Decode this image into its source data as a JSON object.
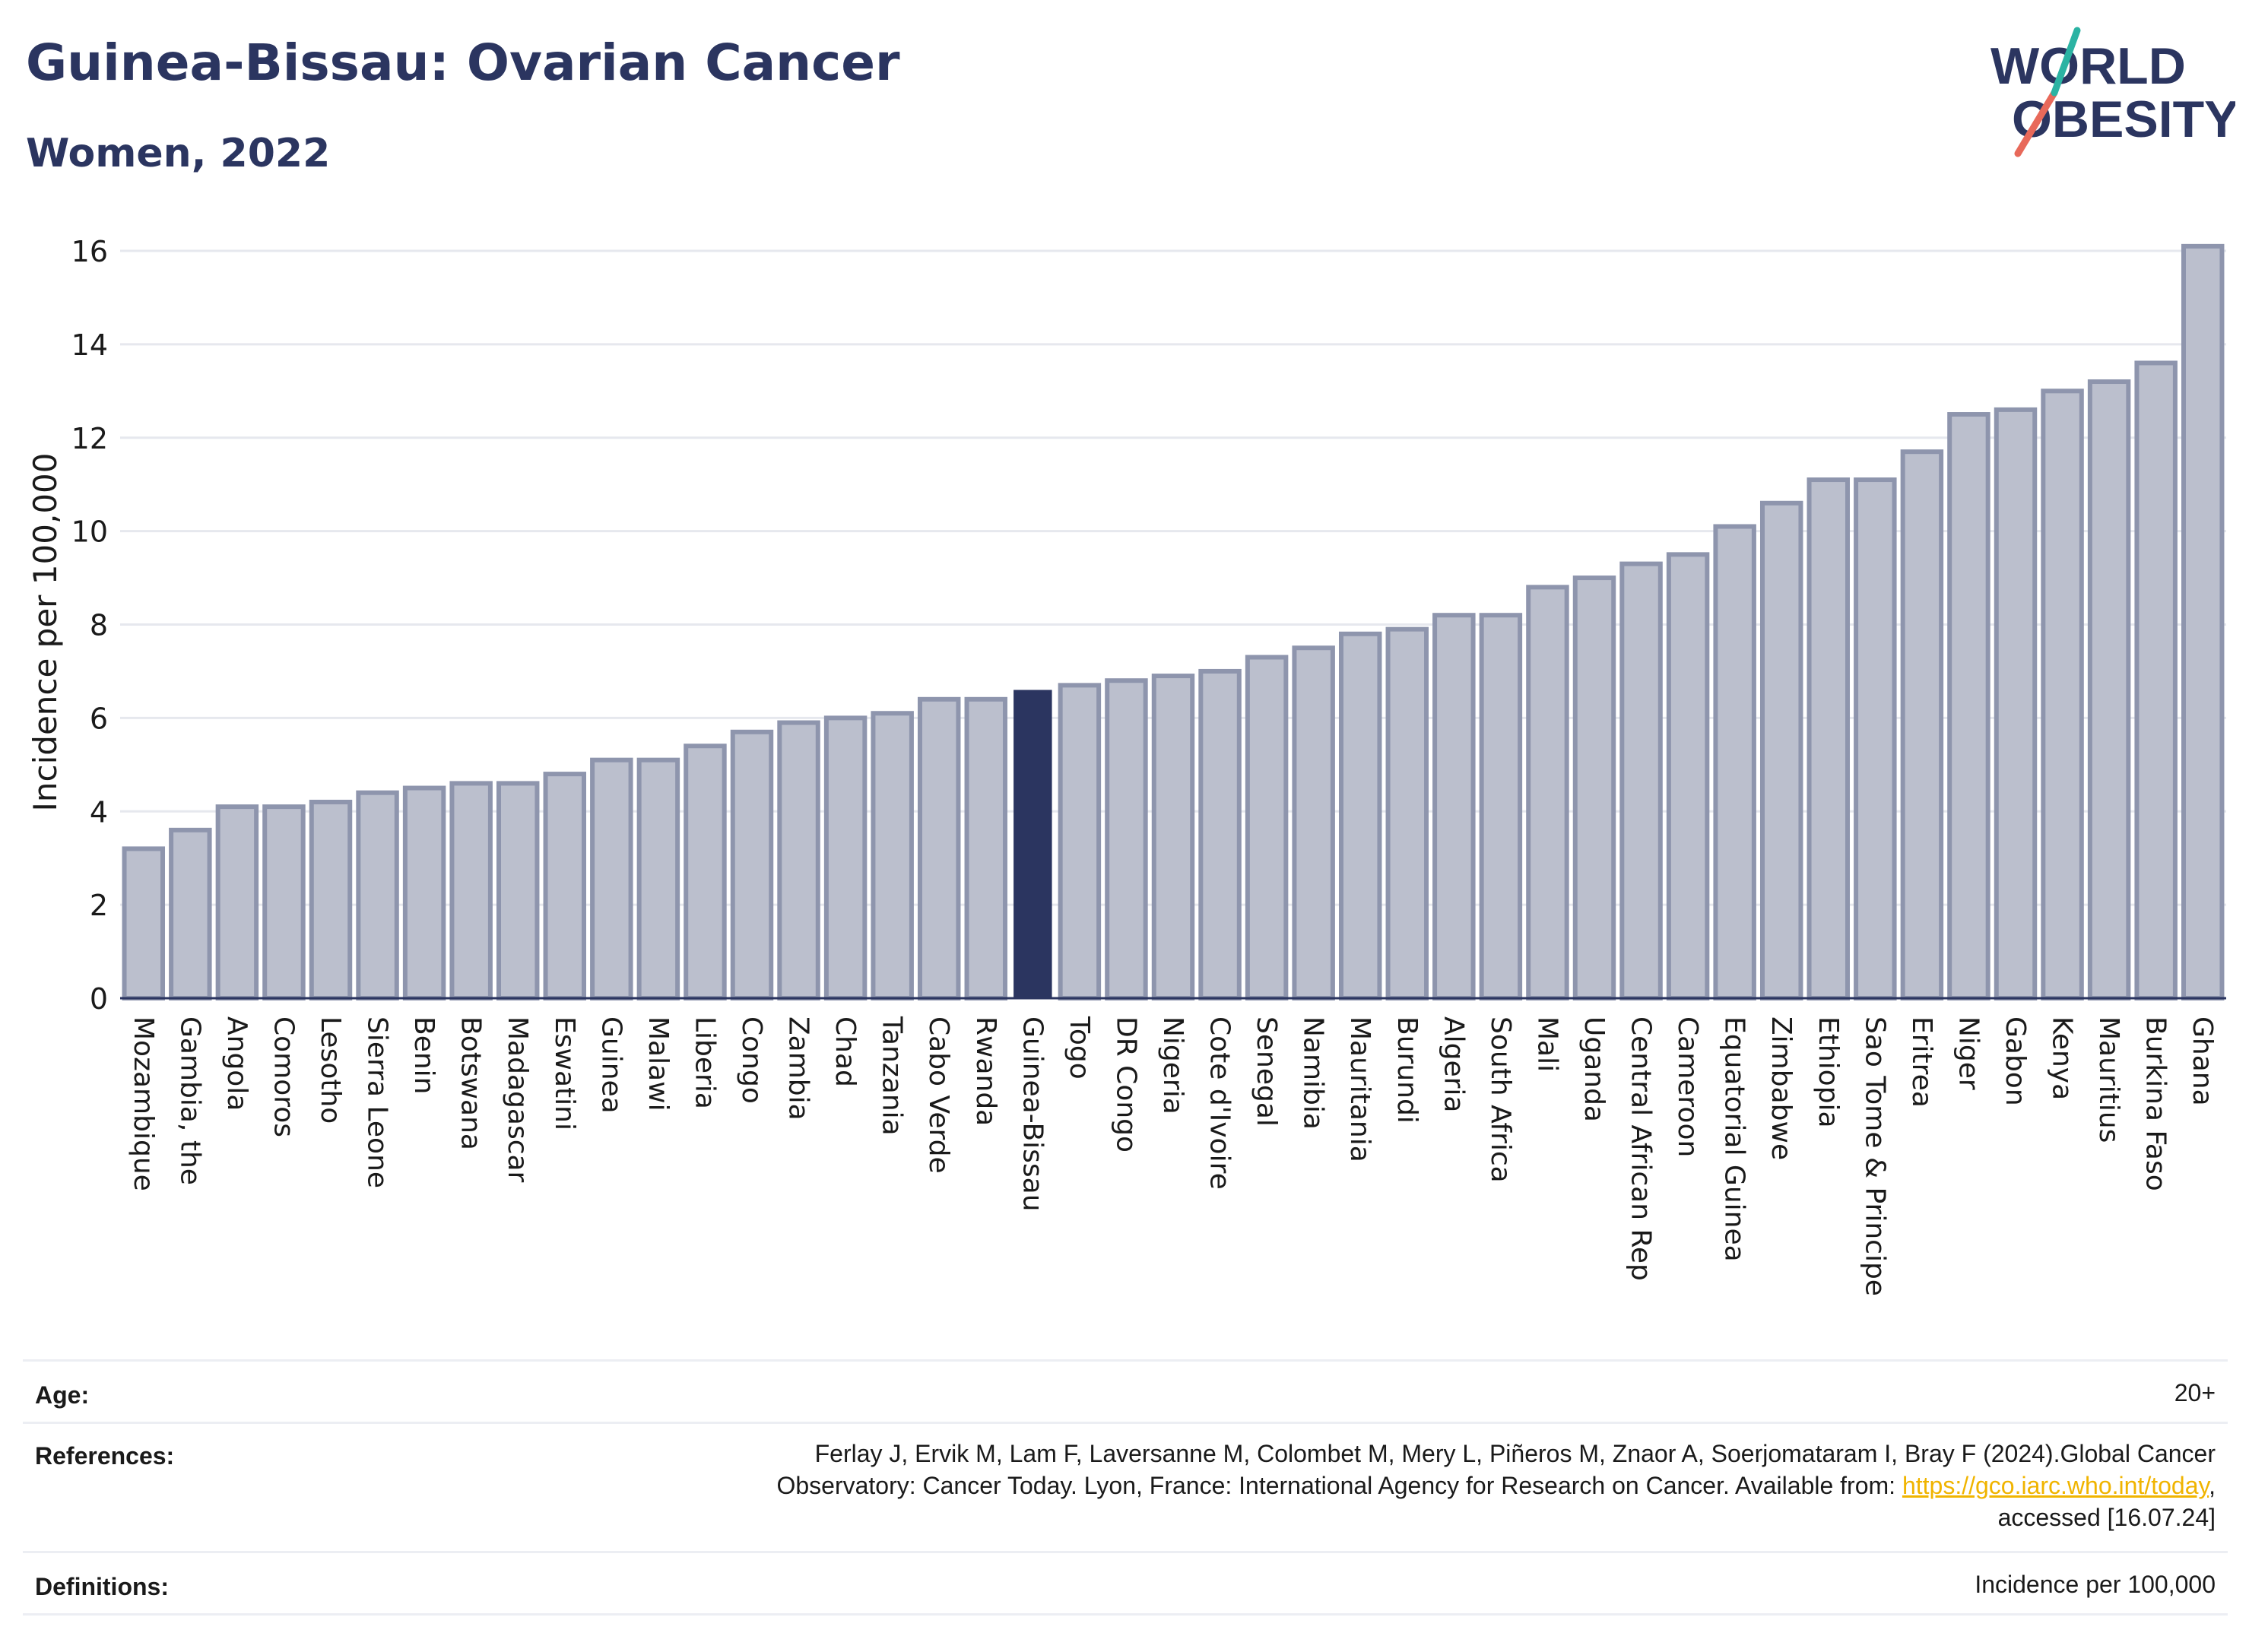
{
  "header": {
    "title": "Guinea-Bissau: Ovarian Cancer",
    "subtitle": "Women, 2022"
  },
  "logo": {
    "line1": "WORLD",
    "line2": "OBESITY",
    "name": "world-obesity-logo"
  },
  "chart_data": {
    "type": "bar",
    "ylabel": "Incidence per 100,000",
    "ylim": [
      0,
      16
    ],
    "yticks": [
      0,
      2,
      4,
      6,
      8,
      10,
      12,
      14,
      16
    ],
    "grid": true,
    "highlight": "Guinea-Bissau",
    "colors": {
      "bar": "#bbbfcd",
      "bar_edge": "#8e95ad",
      "highlight": "#2b3560"
    },
    "categories": [
      "Mozambique",
      "Gambia, the",
      "Angola",
      "Comoros",
      "Lesotho",
      "Sierra Leone",
      "Benin",
      "Botswana",
      "Madagascar",
      "Eswatini",
      "Guinea",
      "Malawi",
      "Liberia",
      "Congo",
      "Zambia",
      "Chad",
      "Tanzania",
      "Cabo Verde",
      "Rwanda",
      "Guinea-Bissau",
      "Togo",
      "DR Congo",
      "Nigeria",
      "Cote d'Ivoire",
      "Senegal",
      "Namibia",
      "Mauritania",
      "Burundi",
      "Algeria",
      "South Africa",
      "Mali",
      "Uganda",
      "Central African Rep",
      "Cameroon",
      "Equatorial Guinea",
      "Zimbabwe",
      "Ethiopia",
      "Sao Tome & Principe",
      "Eritrea",
      "Niger",
      "Gabon",
      "Kenya",
      "Mauritius",
      "Burkina Faso",
      "Ghana"
    ],
    "values": [
      3.2,
      3.6,
      4.1,
      4.1,
      4.2,
      4.4,
      4.5,
      4.6,
      4.6,
      4.8,
      5.1,
      5.1,
      5.4,
      5.7,
      5.9,
      6.0,
      6.1,
      6.4,
      6.4,
      6.6,
      6.7,
      6.8,
      6.9,
      7.0,
      7.3,
      7.5,
      7.8,
      7.9,
      8.2,
      8.2,
      8.8,
      9.0,
      9.3,
      9.5,
      10.1,
      10.6,
      11.1,
      11.1,
      11.7,
      12.5,
      12.6,
      13.0,
      13.2,
      13.6,
      16.1
    ]
  },
  "info": {
    "age_label": "Age:",
    "age_value": "20+",
    "references_label": "References:",
    "references_line1": "Ferlay J, Ervik M, Lam F, Laversanne M, Colombet M, Mery L, Piñeros M, Znaor A, Soerjomataram I, Bray F (2024).Global Cancer",
    "references_line2_pre": "Observatory: Cancer Today. Lyon, France: International Agency for Research on Cancer. Available from: ",
    "references_link": "https://gco.iarc.who.int/today",
    "references_line2_post": ",",
    "references_line3": "accessed [16.07.24]",
    "definitions_label": "Definitions:",
    "definitions_value": "Incidence per 100,000"
  }
}
